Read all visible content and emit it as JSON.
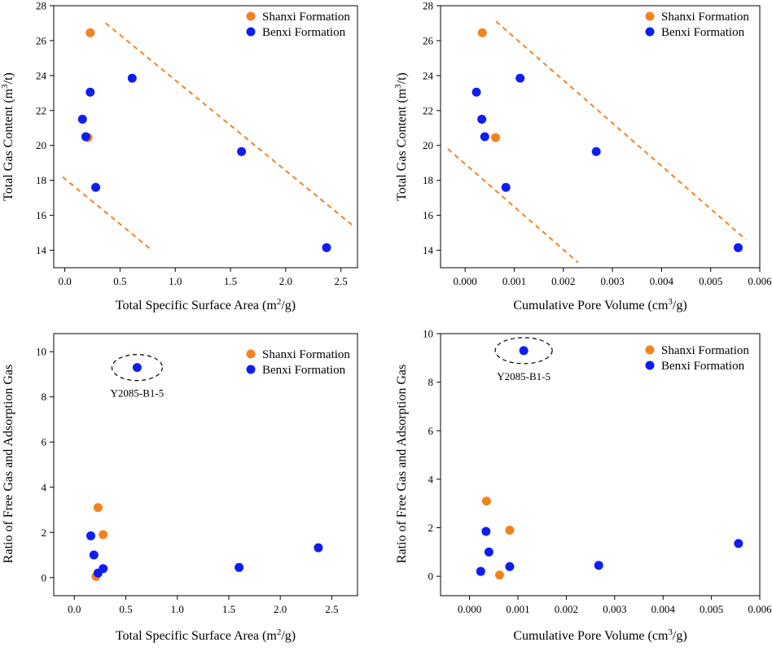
{
  "colors": {
    "shanxi": "#f5821f",
    "benxi": "#0f1ef0",
    "trend": "#f5821f",
    "axis": "#000000"
  },
  "chart_data": [
    {
      "type": "scatter",
      "id": "top-left",
      "xlabel": "Total Specific Surface Area",
      "xunit": "(m²/g)",
      "ylabel": "Total Gas Content",
      "yunit": "(m³/t)",
      "xlim": [
        -0.1,
        2.65
      ],
      "ylim": [
        13,
        28
      ],
      "xticks": [
        "0.0",
        "0.5",
        "1.0",
        "1.5",
        "2.0",
        "2.5"
      ],
      "yticks": [
        "14",
        "16",
        "18",
        "20",
        "22",
        "24",
        "26",
        "28"
      ],
      "legend": [
        "Shanxi Formation",
        "Benxi Formation"
      ],
      "series": [
        {
          "name": "Shanxi Formation",
          "color_key": "shanxi",
          "points": [
            [
              0.23,
              26.45
            ],
            [
              0.21,
              20.45
            ]
          ]
        },
        {
          "name": "Benxi Formation",
          "color_key": "benxi",
          "points": [
            [
              0.61,
              23.85
            ],
            [
              0.23,
              23.05
            ],
            [
              0.16,
              21.5
            ],
            [
              0.19,
              20.5
            ],
            [
              0.28,
              17.6
            ],
            [
              1.6,
              19.65
            ],
            [
              2.37,
              14.15
            ]
          ]
        }
      ],
      "trend_lines": [
        [
          [
            0.37,
            27.0
          ],
          [
            2.63,
            15.3
          ]
        ],
        [
          [
            -0.02,
            18.2
          ],
          [
            0.77,
            14.1
          ]
        ]
      ]
    },
    {
      "type": "scatter",
      "id": "top-right",
      "xlabel": "Cumulative Pore Volume",
      "xunit": "(cm³/g)",
      "ylabel": "Total Gas Content",
      "yunit": "(m³/t)",
      "xlim": [
        -0.0005,
        0.006
      ],
      "ylim": [
        13,
        28
      ],
      "xticks": [
        "0.000",
        "0.001",
        "0.002",
        "0.003",
        "0.004",
        "0.005",
        "0.006"
      ],
      "yticks": [
        "14",
        "16",
        "18",
        "20",
        "22",
        "24",
        "26",
        "28"
      ],
      "legend": [
        "Shanxi Formation",
        "Benxi Formation"
      ],
      "series": [
        {
          "name": "Shanxi Formation",
          "color_key": "shanxi",
          "points": [
            [
              0.00035,
              26.45
            ],
            [
              0.00062,
              20.45
            ]
          ]
        },
        {
          "name": "Benxi Formation",
          "color_key": "benxi",
          "points": [
            [
              0.00112,
              23.85
            ],
            [
              0.00023,
              23.05
            ],
            [
              0.00034,
              21.5
            ],
            [
              0.0004,
              20.5
            ],
            [
              0.00083,
              17.6
            ],
            [
              0.00267,
              19.65
            ],
            [
              0.00556,
              14.15
            ]
          ]
        }
      ],
      "trend_lines": [
        [
          [
            0.00063,
            27.1
          ],
          [
            0.00572,
            14.6
          ]
        ],
        [
          [
            -0.00035,
            19.8
          ],
          [
            0.0023,
            13.3
          ]
        ]
      ]
    },
    {
      "type": "scatter",
      "id": "bottom-left",
      "xlabel": "Total Specific Surface Area",
      "xunit": "(m²/g)",
      "ylabel": "Ratio of Free Gas and Adsorption Gas",
      "yunit": "",
      "xlim": [
        -0.2,
        2.75
      ],
      "ylim": [
        -0.8,
        10.8
      ],
      "xticks": [
        "0.0",
        "0.5",
        "1.0",
        "1.5",
        "2.0",
        "2.5"
      ],
      "yticks": [
        "0",
        "2",
        "4",
        "6",
        "8",
        "10"
      ],
      "legend": [
        "Shanxi Formation",
        "Benxi Formation"
      ],
      "annotation": "Y2085-B1-5",
      "annotation_point": [
        0.61,
        9.3
      ],
      "series": [
        {
          "name": "Shanxi Formation",
          "color_key": "shanxi",
          "points": [
            [
              0.23,
              3.1
            ],
            [
              0.28,
              1.9
            ],
            [
              0.21,
              0.05
            ]
          ]
        },
        {
          "name": "Benxi Formation",
          "color_key": "benxi",
          "points": [
            [
              0.61,
              9.3
            ],
            [
              0.16,
              1.85
            ],
            [
              0.19,
              1.0
            ],
            [
              0.28,
              0.4
            ],
            [
              0.23,
              0.2
            ],
            [
              1.6,
              0.45
            ],
            [
              2.37,
              1.32
            ]
          ]
        }
      ],
      "trend_lines": []
    },
    {
      "type": "scatter",
      "id": "bottom-right",
      "xlabel": "Cumulative Pore Volume",
      "xunit": "(cm³/g)",
      "ylabel": "Ratio of Free Gas and Adsorption Gas",
      "yunit": "",
      "xlim": [
        -0.0006,
        0.006
      ],
      "ylim": [
        -0.8,
        10
      ],
      "xticks": [
        "0.000",
        "0.001",
        "0.002",
        "0.003",
        "0.004",
        "0.005",
        "0.006"
      ],
      "yticks": [
        "0",
        "2",
        "4",
        "6",
        "8",
        "10"
      ],
      "legend": [
        "Shanxi Formation",
        "Benxi Formation"
      ],
      "annotation": "Y2085-B1-5",
      "annotation_point": [
        0.00112,
        9.3
      ],
      "series": [
        {
          "name": "Shanxi Formation",
          "color_key": "shanxi",
          "points": [
            [
              0.00035,
              3.1
            ],
            [
              0.00083,
              1.9
            ],
            [
              0.00062,
              0.05
            ]
          ]
        },
        {
          "name": "Benxi Formation",
          "color_key": "benxi",
          "points": [
            [
              0.00112,
              9.3
            ],
            [
              0.00034,
              1.85
            ],
            [
              0.0004,
              1.0
            ],
            [
              0.00083,
              0.4
            ],
            [
              0.00023,
              0.2
            ],
            [
              0.00267,
              0.45
            ],
            [
              0.00556,
              1.35
            ]
          ]
        }
      ],
      "trend_lines": []
    }
  ]
}
